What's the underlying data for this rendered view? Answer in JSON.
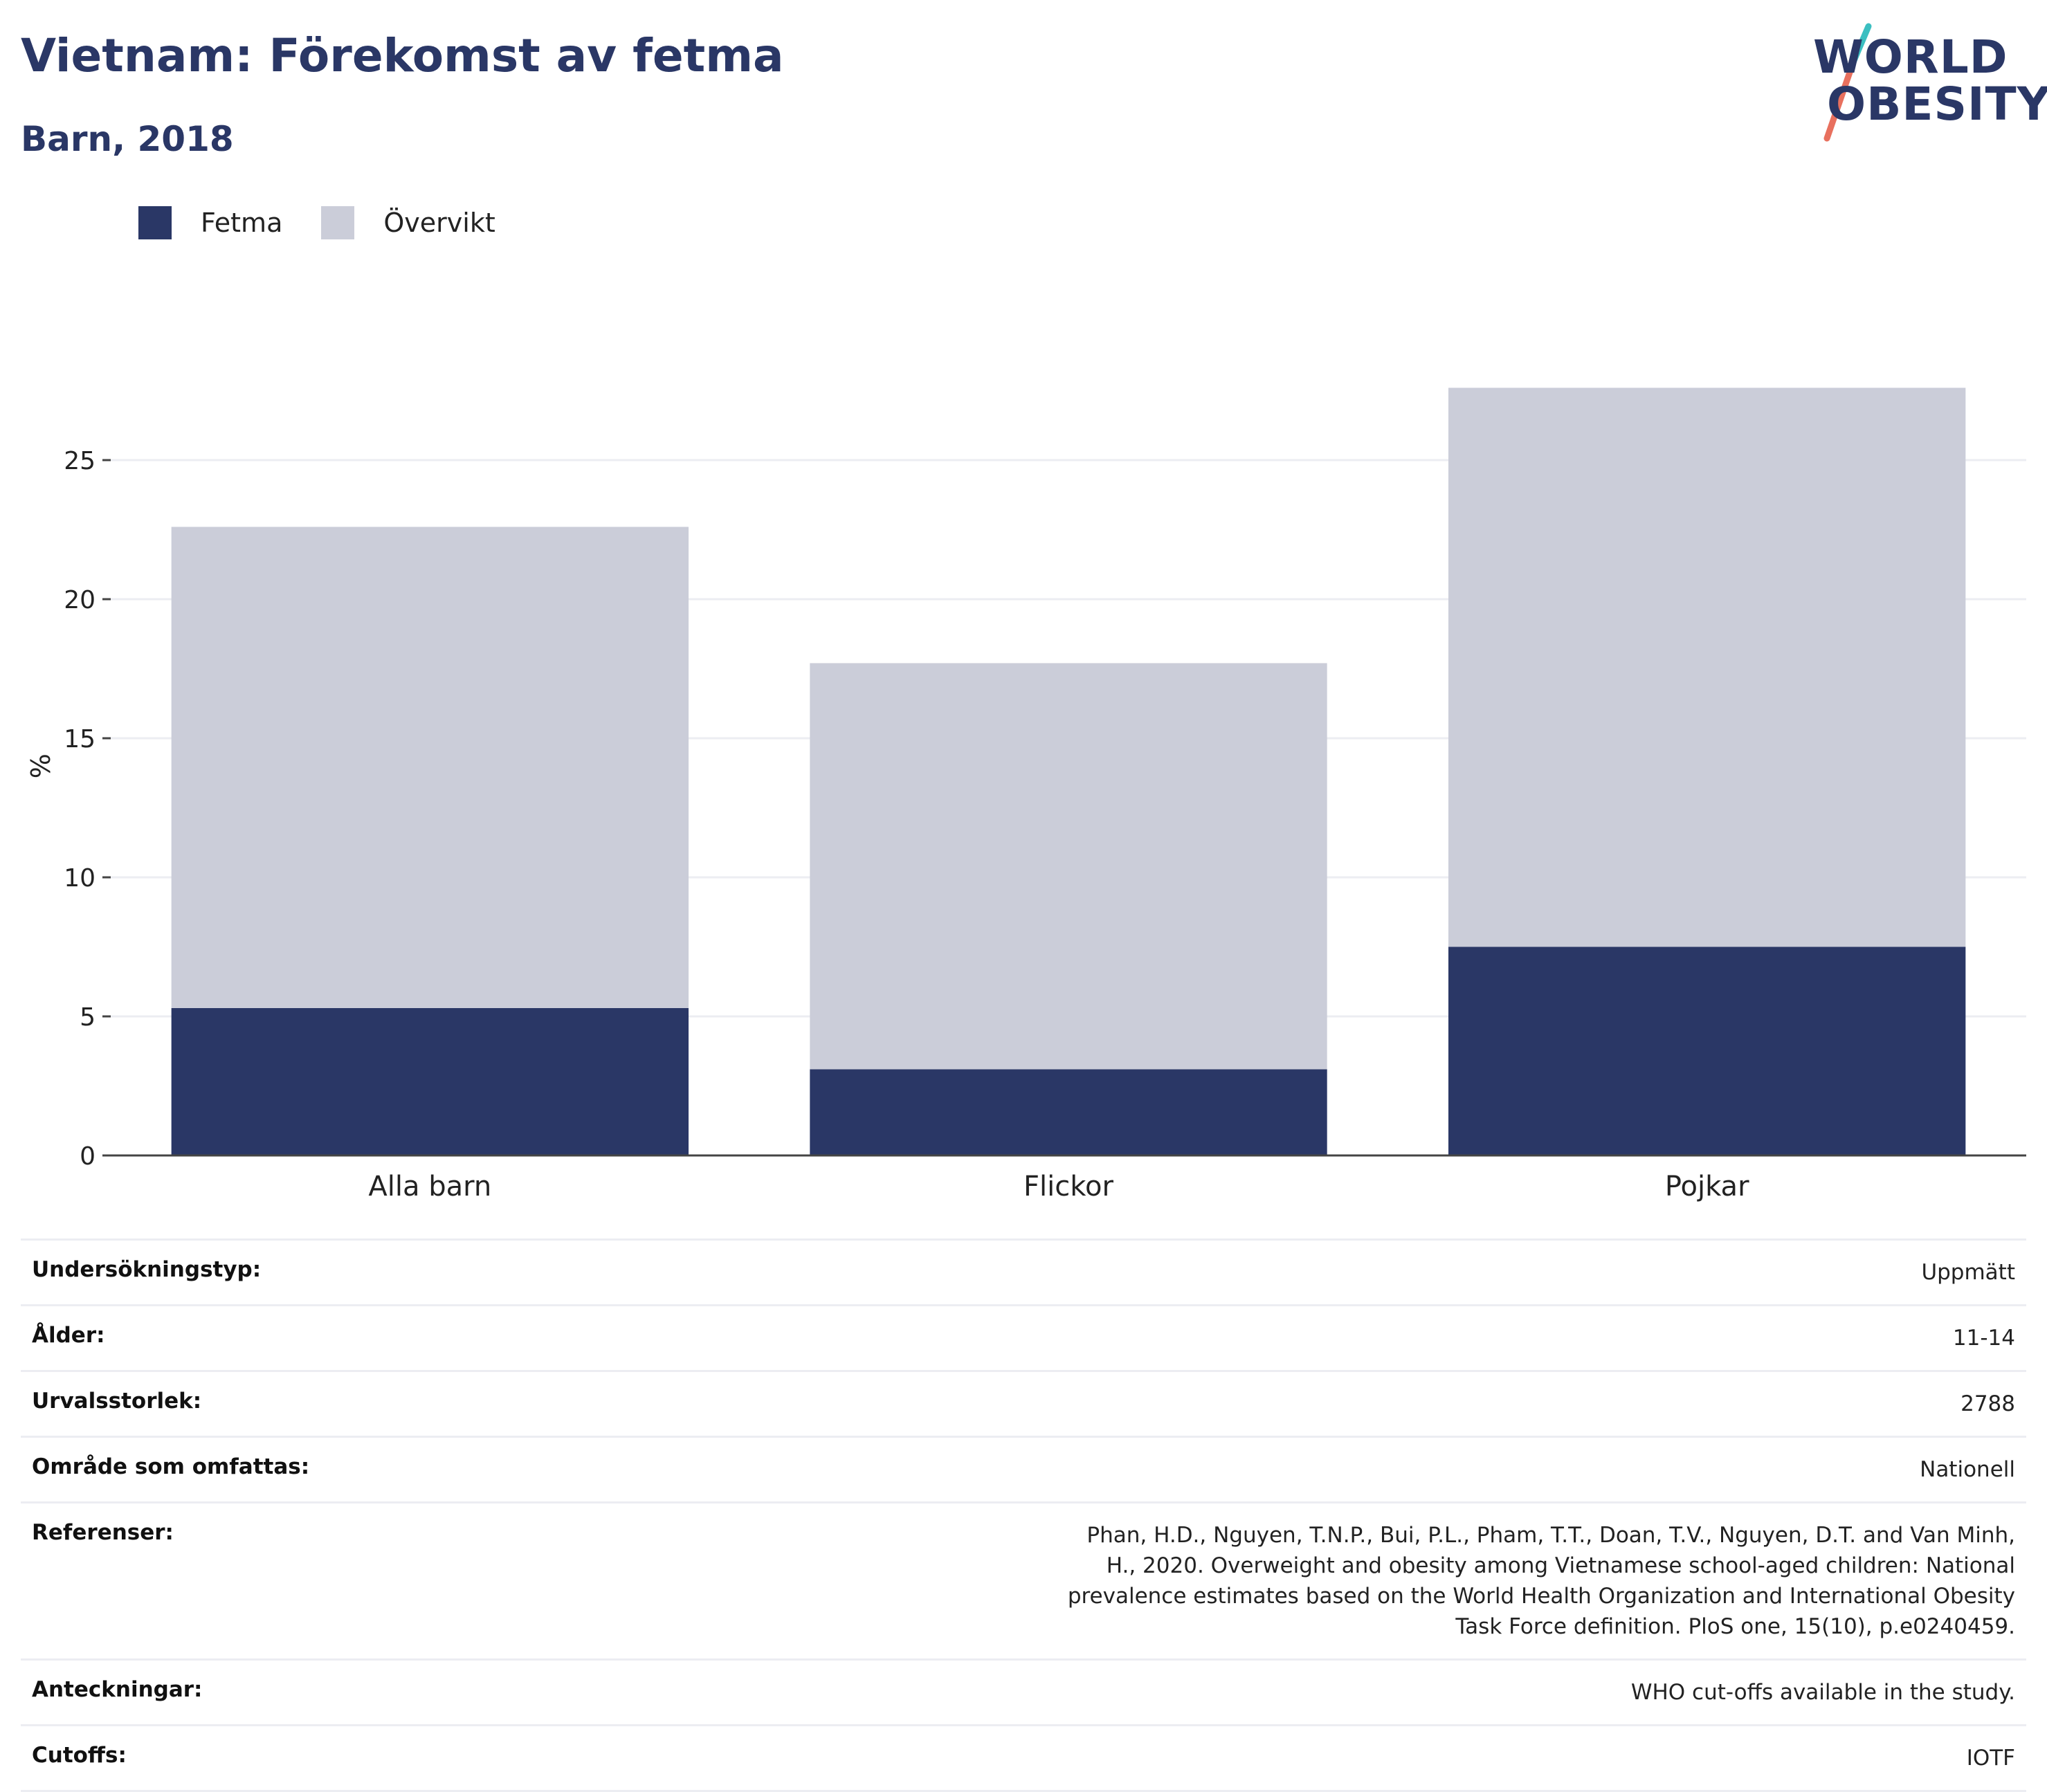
{
  "header": {
    "title": "Vietnam: Förekomst av fetma",
    "subtitle": "Barn, 2018"
  },
  "logo": {
    "line1": "WORLD",
    "line2": "OBESITY",
    "colors": {
      "text": "#2a3766",
      "accent_teal": "#3bbfc1",
      "accent_coral": "#e8705e"
    }
  },
  "legend": [
    {
      "label": "Fetma",
      "color": "#2a3766"
    },
    {
      "label": "Övervikt",
      "color": "#cbcdd9"
    }
  ],
  "chart_data": {
    "type": "bar",
    "stacked": true,
    "categories": [
      "Alla barn",
      "Flickor",
      "Pojkar"
    ],
    "series": [
      {
        "name": "Fetma",
        "values": [
          5.3,
          3.1,
          7.5
        ],
        "color": "#2a3766"
      },
      {
        "name": "Övervikt",
        "values": [
          17.3,
          14.6,
          20.1
        ],
        "color": "#cbcdd9"
      }
    ],
    "title": "Vietnam: Förekomst av fetma",
    "subtitle": "Barn, 2018",
    "xlabel": "",
    "ylabel": "%",
    "yticks": [
      0,
      5,
      10,
      15,
      20,
      25
    ],
    "ylim": [
      0,
      28.5
    ],
    "grid": true,
    "legend_position": "top-left"
  },
  "details": [
    {
      "key": "Undersökningstyp:",
      "value": "Uppmätt"
    },
    {
      "key": "Ålder:",
      "value": "11-14"
    },
    {
      "key": "Urvalsstorlek:",
      "value": "2788"
    },
    {
      "key": "Område som omfattas:",
      "value": "Nationell"
    },
    {
      "key": "Referenser:",
      "value": "Phan, H.D., Nguyen, T.N.P., Bui, P.L., Pham, T.T., Doan, T.V., Nguyen, D.T. and Van Minh, H., 2020. Overweight and obesity among Vietnamese school-aged children: National prevalence estimates based on the World Health Organization and International Obesity Task Force definition. PloS one, 15(10), p.e0240459."
    },
    {
      "key": "Anteckningar:",
      "value": "WHO cut-offs available in the study."
    },
    {
      "key": "Cutoffs:",
      "value": "IOTF"
    }
  ]
}
